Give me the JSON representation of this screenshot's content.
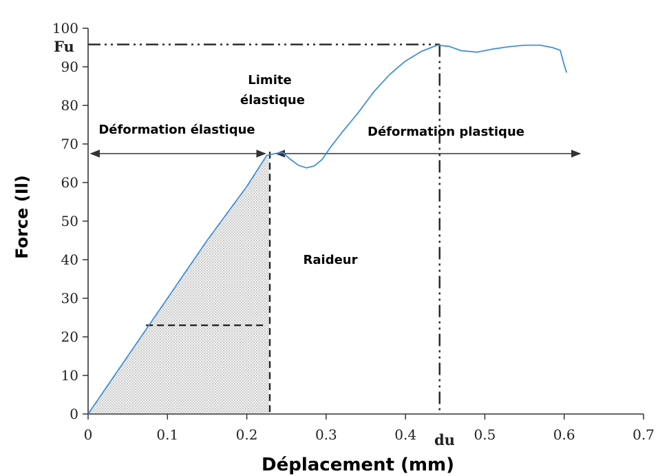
{
  "chart_data": {
    "type": "line",
    "xlabel": "Déplacement (mm)",
    "ylabel": "Force (Il)",
    "xlim": [
      0,
      0.7
    ],
    "ylim": [
      0,
      100
    ],
    "x_ticks": [
      0,
      0.1,
      0.2,
      0.3,
      0.4,
      0.5,
      0.6,
      0.7
    ],
    "y_ticks": [
      0,
      10,
      20,
      30,
      40,
      50,
      60,
      70,
      80,
      90,
      100
    ],
    "x_tick_labels": [
      "0",
      "0.1",
      "0.2",
      "0.3",
      "0.4",
      "0.5",
      "0.6",
      "0.7"
    ],
    "y_tick_labels": [
      "0",
      "10",
      "20",
      "30",
      "40",
      "50",
      "60",
      "70",
      "80",
      "90",
      "100"
    ],
    "grid": false,
    "series": [
      {
        "color": "#3f8fd8",
        "x": [
          0,
          0.05,
          0.1,
          0.15,
          0.2,
          0.225,
          0.235,
          0.245,
          0.255,
          0.265,
          0.275,
          0.285,
          0.295,
          0.305,
          0.32,
          0.34,
          0.36,
          0.38,
          0.4,
          0.42,
          0.44,
          0.455,
          0.47,
          0.49,
          0.51,
          0.53,
          0.55,
          0.57,
          0.585,
          0.595,
          0.6,
          0.603
        ],
        "y": [
          0,
          15,
          30,
          45,
          59,
          67,
          67.5,
          67.8,
          66,
          64.5,
          63.8,
          64.3,
          66,
          69,
          73,
          78,
          83.5,
          88,
          91.5,
          94,
          95.6,
          95.3,
          94.2,
          93.8,
          94.6,
          95.2,
          95.6,
          95.6,
          95.0,
          94.3,
          90.5,
          88.5
        ]
      }
    ],
    "annotations": {
      "fu_label": "Fu",
      "fu_value": 95.8,
      "du_label": "du",
      "du_value": 0.443,
      "limite_line1": "Limite",
      "limite_line2": "élastique",
      "elastic_label": "Déformation élastique",
      "plastic_label": "Déformation plastique",
      "raideur_label": "Raideur",
      "arrow_force": 67.5,
      "elastic_x_end": 0.225,
      "plastic_x_range": [
        0.237,
        0.62
      ],
      "stiffness_force": 23,
      "stiffness_x_range": [
        0.073,
        0.225
      ]
    }
  }
}
